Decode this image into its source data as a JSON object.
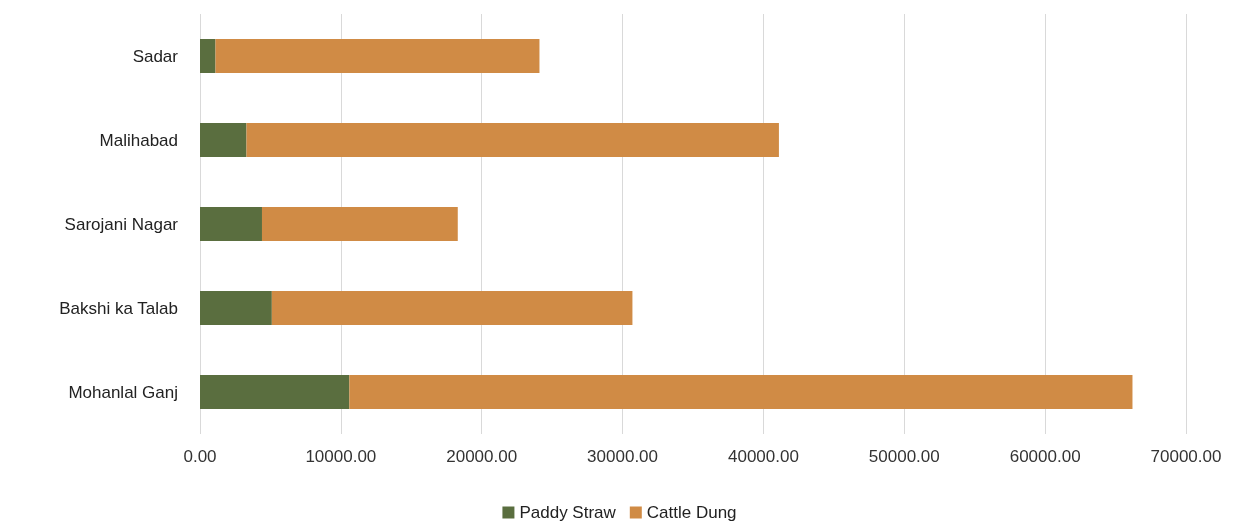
{
  "chart_data": {
    "type": "bar",
    "orientation": "horizontal",
    "stacked": true,
    "categories": [
      "Sadar",
      "Malihabad",
      "Sarojani Nagar",
      "Bakshi ka Talab",
      "Mohanlal Ganj"
    ],
    "series": [
      {
        "name": "Paddy Straw",
        "color": "#5a6e3f",
        "values": [
          1100,
          3300,
          4400,
          5100,
          10600
        ]
      },
      {
        "name": "Cattle Dung",
        "color": "#d08b45",
        "values": [
          23000,
          37800,
          13900,
          25600,
          55600
        ]
      }
    ],
    "xlim": [
      0,
      70000
    ],
    "xticks": [
      {
        "value": 0,
        "label": "0.00"
      },
      {
        "value": 10000,
        "label": "10000.00"
      },
      {
        "value": 20000,
        "label": "20000.00"
      },
      {
        "value": 30000,
        "label": "30000.00"
      },
      {
        "value": 40000,
        "label": "40000.00"
      },
      {
        "value": 50000,
        "label": "50000.00"
      },
      {
        "value": 60000,
        "label": "60000.00"
      },
      {
        "value": 70000,
        "label": "70000.00"
      }
    ],
    "grid": "x",
    "legend": "bottom"
  }
}
